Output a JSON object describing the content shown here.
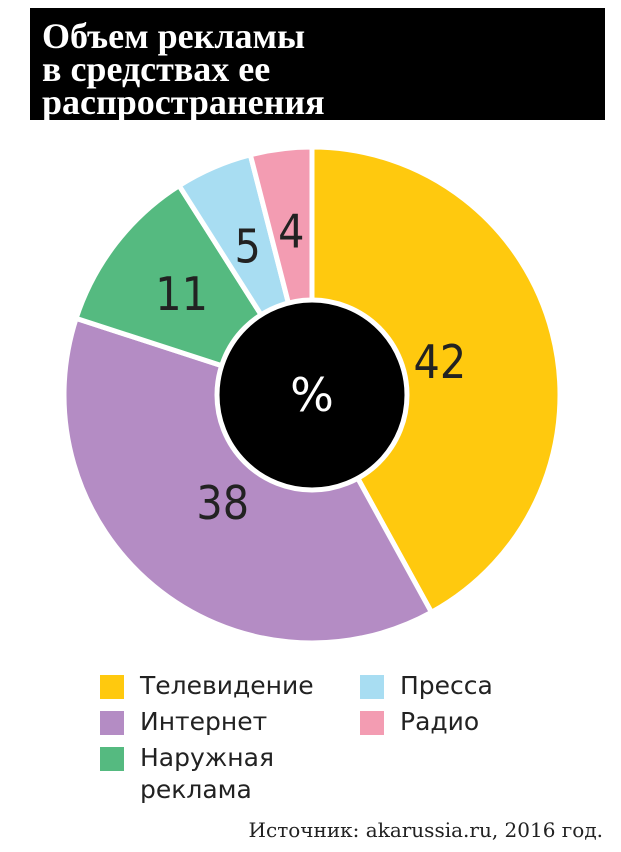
{
  "title": {
    "line1": "Объем рекламы",
    "line2": "в средствах ее",
    "line3": "распространения"
  },
  "chart_data": {
    "type": "pie",
    "variant": "donut",
    "center_label": "%",
    "categories": [
      "Телевидение",
      "Интернет",
      "Наружная реклама",
      "Пресса",
      "Радио"
    ],
    "values": [
      42,
      38,
      11,
      5,
      4
    ],
    "colors": [
      "#FFC90E",
      "#B48CC4",
      "#55BA80",
      "#A8DDF2",
      "#F39CB2"
    ],
    "legend_placement": "bottom"
  },
  "legend": {
    "tv": "Телевидение",
    "internet": "Интернет",
    "outdoor_line1": "Наружная",
    "outdoor_line2": "реклама",
    "press": "Пресса",
    "radio": "Радио"
  },
  "source": "Источник: akarussia.ru, 2016 год."
}
